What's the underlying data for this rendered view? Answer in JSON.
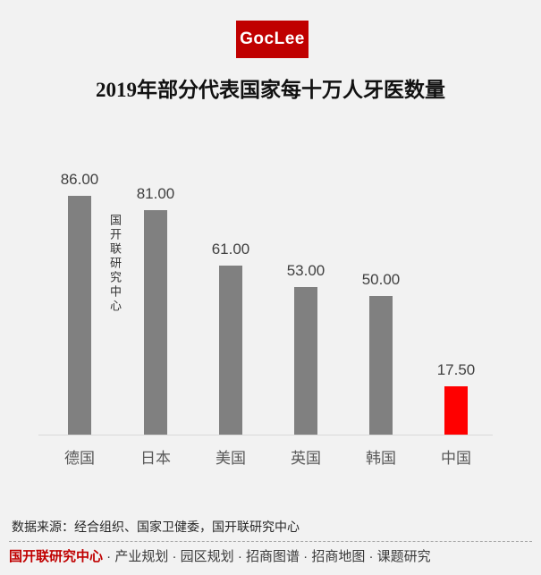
{
  "logo": {
    "text": "GocLee",
    "bg_color": "#c00000",
    "text_color": "#ffffff"
  },
  "title": "2019年部分代表国家每十万人牙医数量",
  "watermark": "国开联研究中心",
  "chart_data": {
    "type": "bar",
    "title": "2019年部分代表国家每十万人牙医数量",
    "categories": [
      "德国",
      "日本",
      "美国",
      "英国",
      "韩国",
      "中国"
    ],
    "values": [
      86.0,
      81.0,
      61.0,
      53.0,
      50.0,
      17.5
    ],
    "value_labels": [
      "86.00",
      "81.00",
      "61.00",
      "53.00",
      "50.00",
      "17.50"
    ],
    "bar_colors": [
      "#808080",
      "#808080",
      "#808080",
      "#808080",
      "#808080",
      "#ff0000"
    ],
    "xlabel": "",
    "ylabel": "",
    "ylim": [
      0,
      100
    ],
    "grid": false,
    "legend": "none",
    "highlight_category": "中国",
    "highlight_color": "#ff0000",
    "default_bar_color": "#808080",
    "baseline_color": "#d9d9d9"
  },
  "source_note": "数据来源：经合组织、国家卫健委，国开联研究中心",
  "footer": {
    "brand": "国开联研究中心",
    "brand_color": "#c00000",
    "separator": "·",
    "items": [
      "产业规划",
      "园区规划",
      "招商图谱",
      "招商地图",
      "课题研究"
    ]
  }
}
